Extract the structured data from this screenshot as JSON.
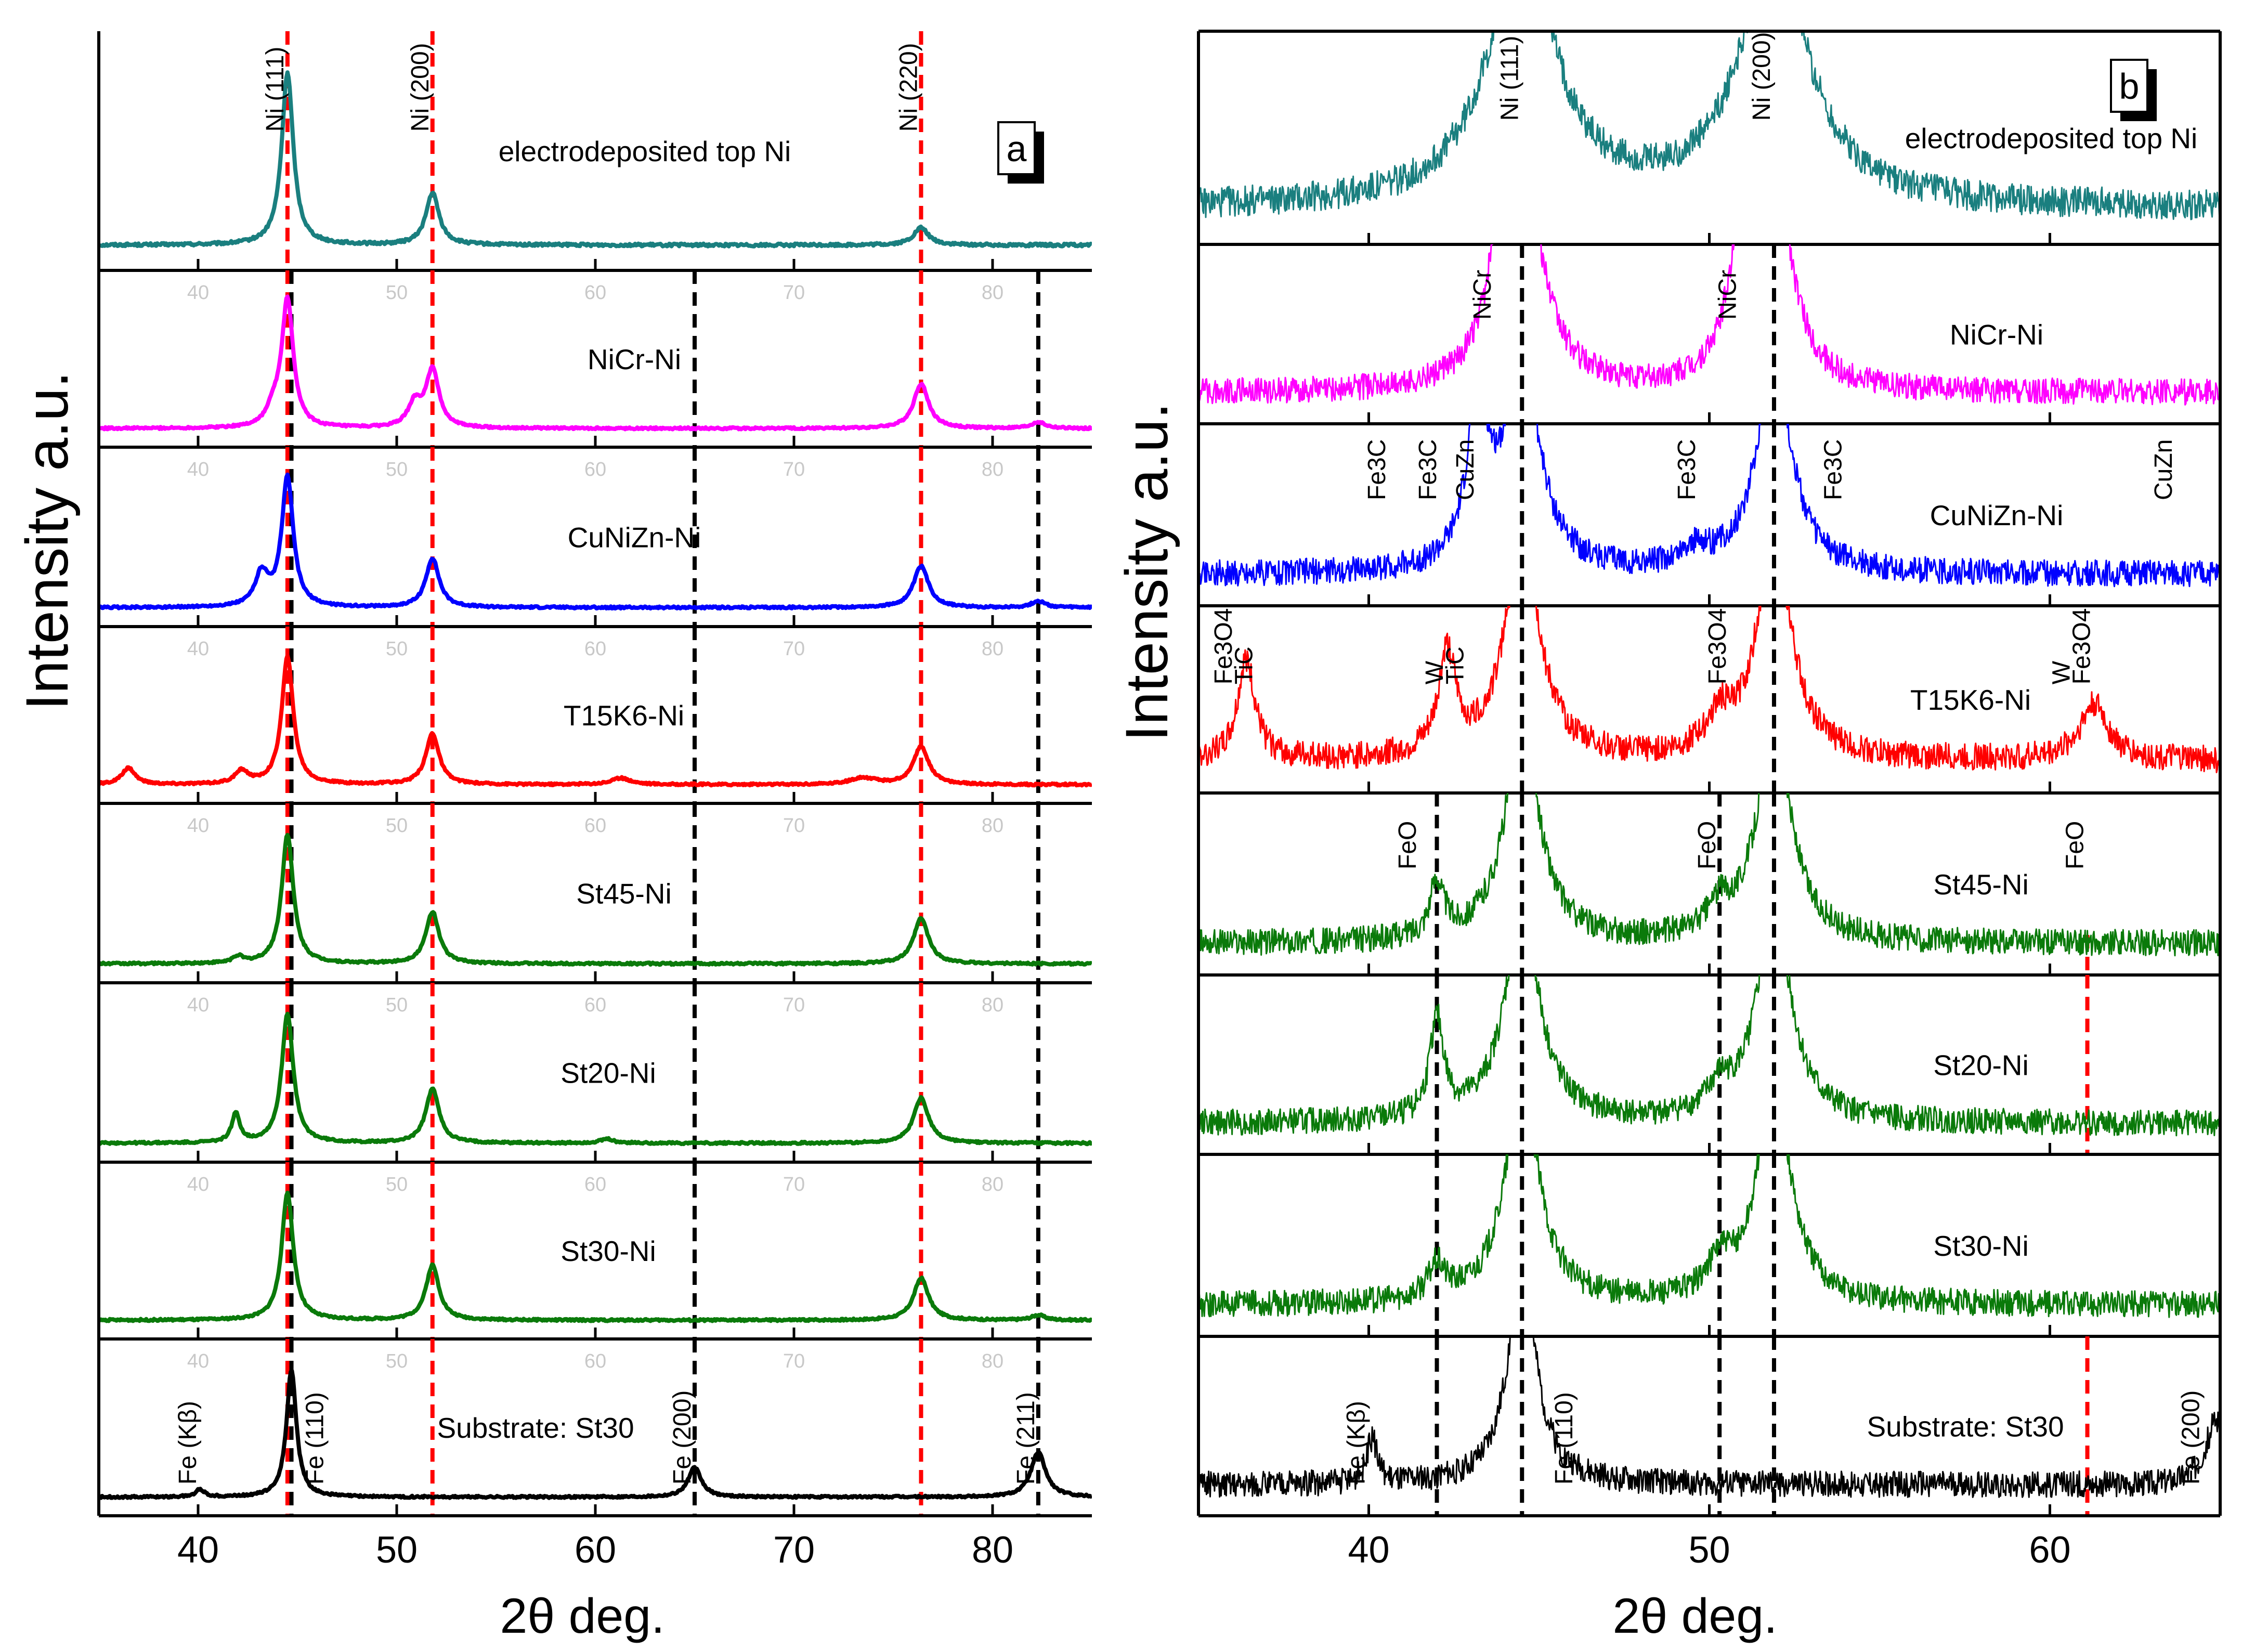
{
  "figure": {
    "y_axis_title": "Intensity a.u.",
    "x_axis_title": "2θ deg.",
    "colors": {
      "electrodeposited": "#1a7f7f",
      "nicr": "#ff00ff",
      "cunizn": "#0000ff",
      "t15k6": "#ff0000",
      "green": "#0a7a0a",
      "substrate": "#000000",
      "ref_red": "#ff0000",
      "ref_black": "#000000"
    }
  },
  "chart_data": [
    {
      "type": "line",
      "panel_label": "a",
      "xlabel": "2θ deg.",
      "ylabel": "Intensity a.u.",
      "xlim": [
        35,
        85
      ],
      "xticks": [
        40,
        50,
        60,
        70,
        80
      ],
      "xtick_labels": [
        "40",
        "50",
        "60",
        "70",
        "80"
      ],
      "grid": false,
      "reference_lines": [
        {
          "x": 44.5,
          "color": "red"
        },
        {
          "x": 51.8,
          "color": "red"
        },
        {
          "x": 76.4,
          "color": "red"
        },
        {
          "x": 44.7,
          "color": "black"
        },
        {
          "x": 65.0,
          "color": "black"
        },
        {
          "x": 82.3,
          "color": "black"
        }
      ],
      "series": [
        {
          "name": "electrodeposited top Ni",
          "color_key": "electrodeposited",
          "peaks": [
            [
              44.5,
              1.0,
              0.35
            ],
            [
              51.8,
              0.3,
              0.4
            ],
            [
              76.4,
              0.1,
              0.45
            ]
          ],
          "peak_labels": [
            {
              "text": "Ni (111)",
              "x": 44.5
            },
            {
              "text": "Ni (200)",
              "x": 51.8
            },
            {
              "text": "Ni (220)",
              "x": 76.4
            }
          ]
        },
        {
          "name": "NiCr-Ni",
          "color_key": "nicr",
          "peaks": [
            [
              44.5,
              1.0,
              0.35
            ],
            [
              43.8,
              0.12,
              0.4
            ],
            [
              51.8,
              0.45,
              0.4
            ],
            [
              50.9,
              0.18,
              0.4
            ],
            [
              76.4,
              0.35,
              0.45
            ],
            [
              82.3,
              0.05,
              0.4
            ]
          ],
          "peak_labels": []
        },
        {
          "name": "CuNiZn-Ni",
          "color_key": "cunizn",
          "peaks": [
            [
              44.5,
              1.0,
              0.35
            ],
            [
              43.2,
              0.25,
              0.4
            ],
            [
              51.8,
              0.38,
              0.4
            ],
            [
              76.4,
              0.32,
              0.45
            ],
            [
              82.3,
              0.05,
              0.4
            ]
          ],
          "peak_labels": []
        },
        {
          "name": "T15K6-Ni",
          "color_key": "t15k6",
          "peaks": [
            [
              44.5,
              1.0,
              0.35
            ],
            [
              36.5,
              0.13,
              0.4
            ],
            [
              42.2,
              0.1,
              0.4
            ],
            [
              51.8,
              0.4,
              0.4
            ],
            [
              61.3,
              0.05,
              0.6
            ],
            [
              73.5,
              0.05,
              0.8
            ],
            [
              76.4,
              0.3,
              0.45
            ]
          ],
          "peak_labels": []
        },
        {
          "name": "St45-Ni",
          "color_key": "green",
          "peaks": [
            [
              44.5,
              1.0,
              0.35
            ],
            [
              42.0,
              0.05,
              0.3
            ],
            [
              51.8,
              0.4,
              0.4
            ],
            [
              76.4,
              0.35,
              0.45
            ]
          ],
          "peak_labels": []
        },
        {
          "name": "St20-Ni",
          "color_key": "green",
          "peaks": [
            [
              44.5,
              1.0,
              0.35
            ],
            [
              41.9,
              0.22,
              0.25
            ],
            [
              51.8,
              0.42,
              0.4
            ],
            [
              60.6,
              0.03,
              0.4
            ],
            [
              76.4,
              0.35,
              0.45
            ]
          ],
          "peak_labels": []
        },
        {
          "name": "St30-Ni",
          "color_key": "green",
          "peaks": [
            [
              44.5,
              1.0,
              0.35
            ],
            [
              51.8,
              0.43,
              0.4
            ],
            [
              76.4,
              0.33,
              0.45
            ],
            [
              82.3,
              0.04,
              0.4
            ]
          ],
          "peak_labels": []
        },
        {
          "name": "Substrate: St30",
          "color_key": "substrate",
          "peaks": [
            [
              44.7,
              1.0,
              0.3
            ],
            [
              40.1,
              0.06,
              0.25
            ],
            [
              65.0,
              0.23,
              0.4
            ],
            [
              82.3,
              0.35,
              0.45
            ]
          ],
          "peak_labels": [
            {
              "text": "Fe (Kβ)",
              "x": 40.1
            },
            {
              "text": "Fe (110)",
              "x": 46.5
            },
            {
              "text": "Fe (200)",
              "x": 65.0
            },
            {
              "text": "Fe (211)",
              "x": 82.3
            }
          ]
        }
      ]
    },
    {
      "type": "line",
      "panel_label": "b",
      "xlabel": "2θ deg.",
      "ylabel": "Intensity a.u.",
      "xlim": [
        35,
        65
      ],
      "xticks": [
        40,
        50,
        60
      ],
      "xtick_labels": [
        "40",
        "50",
        "60"
      ],
      "grid": false,
      "reference_lines": [
        {
          "x": 42.0,
          "color": "black",
          "panels": [
            4,
            5,
            6,
            7
          ]
        },
        {
          "x": 44.5,
          "color": "black",
          "panels": [
            1,
            2,
            3,
            4,
            5,
            6,
            7
          ]
        },
        {
          "x": 50.3,
          "color": "black",
          "panels": [
            4,
            5,
            6,
            7
          ]
        },
        {
          "x": 51.9,
          "color": "black",
          "panels": [
            1,
            2,
            3,
            4,
            5,
            6,
            7
          ]
        },
        {
          "x": 61.1,
          "color": "red",
          "panels": [
            4,
            5,
            7
          ]
        }
      ],
      "series": [
        {
          "name": "electrodeposited top Ni",
          "color_key": "electrodeposited",
          "peaks": [
            [
              44.5,
              1.0,
              1.2
            ],
            [
              51.9,
              1.0,
              1.2
            ]
          ],
          "peak_labels": [
            {
              "text": "Ni (111)",
              "x": 44.5
            },
            {
              "text": "Ni (200)",
              "x": 51.9
            }
          ]
        },
        {
          "name": "NiCr-Ni",
          "color_key": "nicr",
          "peaks": [
            [
              44.5,
              1.0,
              0.7
            ],
            [
              43.9,
              0.45,
              0.4
            ],
            [
              51.9,
              1.0,
              0.6
            ],
            [
              50.9,
              0.55,
              0.45
            ]
          ],
          "peak_labels": [
            {
              "text": "NiCr",
              "x": 43.7
            },
            {
              "text": "NiCr",
              "x": 50.9
            }
          ]
        },
        {
          "name": "CuNiZn-Ni",
          "color_key": "cunizn",
          "peaks": [
            [
              44.5,
              1.0,
              0.6
            ],
            [
              43.2,
              0.75,
              0.35
            ],
            [
              51.9,
              1.0,
              0.6
            ],
            [
              49.6,
              0.08,
              0.5
            ]
          ],
          "peak_labels": [
            {
              "text": "Fe3C",
              "x": 40.6
            },
            {
              "text": "Fe3C",
              "x": 42.1
            },
            {
              "text": "CuZn",
              "x": 43.2
            },
            {
              "text": "Fe3C",
              "x": 49.7
            },
            {
              "text": "Fe3C",
              "x": 54.0
            },
            {
              "text": "CuZn",
              "x": 63.7
            }
          ]
        },
        {
          "name": "T15K6-Ni",
          "color_key": "t15k6",
          "peaks": [
            [
              44.5,
              1.0,
              0.6
            ],
            [
              36.4,
              0.45,
              0.3
            ],
            [
              42.3,
              0.45,
              0.3
            ],
            [
              51.9,
              1.0,
              0.6
            ],
            [
              50.3,
              0.15,
              0.4
            ],
            [
              61.3,
              0.25,
              0.5
            ]
          ],
          "peak_labels": [
            {
              "text": "Fe3O4",
              "x": 36.1
            },
            {
              "text": "TiC",
              "x": 36.7
            },
            {
              "text": "W",
              "x": 42.3
            },
            {
              "text": "TiC",
              "x": 42.9
            },
            {
              "text": "Fe3O4",
              "x": 50.6
            },
            {
              "text": "W",
              "x": 60.7
            },
            {
              "text": "Fe3O4",
              "x": 61.3
            }
          ]
        },
        {
          "name": "St45-Ni",
          "color_key": "green",
          "peaks": [
            [
              44.5,
              1.0,
              0.6
            ],
            [
              42.0,
              0.25,
              0.25
            ],
            [
              51.9,
              1.0,
              0.6
            ],
            [
              50.3,
              0.12,
              0.4
            ]
          ],
          "peak_labels": [
            {
              "text": "FeO",
              "x": 41.5
            },
            {
              "text": "FeO",
              "x": 50.3
            },
            {
              "text": "FeO",
              "x": 61.1
            }
          ]
        },
        {
          "name": "St20-Ni",
          "color_key": "green",
          "peaks": [
            [
              44.5,
              1.0,
              0.6
            ],
            [
              42.0,
              0.45,
              0.25
            ],
            [
              51.9,
              1.0,
              0.6
            ],
            [
              50.3,
              0.12,
              0.4
            ]
          ],
          "peak_labels": []
        },
        {
          "name": "St30-Ni",
          "color_key": "green",
          "peaks": [
            [
              44.5,
              1.0,
              0.6
            ],
            [
              42.0,
              0.15,
              0.3
            ],
            [
              51.9,
              1.0,
              0.6
            ],
            [
              50.3,
              0.15,
              0.4
            ]
          ],
          "peak_labels": []
        },
        {
          "name": "Substrate: St30",
          "color_key": "substrate",
          "peaks": [
            [
              44.5,
              1.0,
              0.5
            ],
            [
              40.1,
              0.2,
              0.2
            ],
            [
              64.9,
              0.3,
              0.4
            ]
          ],
          "peak_labels": [
            {
              "text": "Fe (Kβ)",
              "x": 40.0
            },
            {
              "text": "Fe (110)",
              "x": 46.1
            },
            {
              "text": "Fe (200)",
              "x": 64.5
            }
          ]
        }
      ]
    }
  ]
}
